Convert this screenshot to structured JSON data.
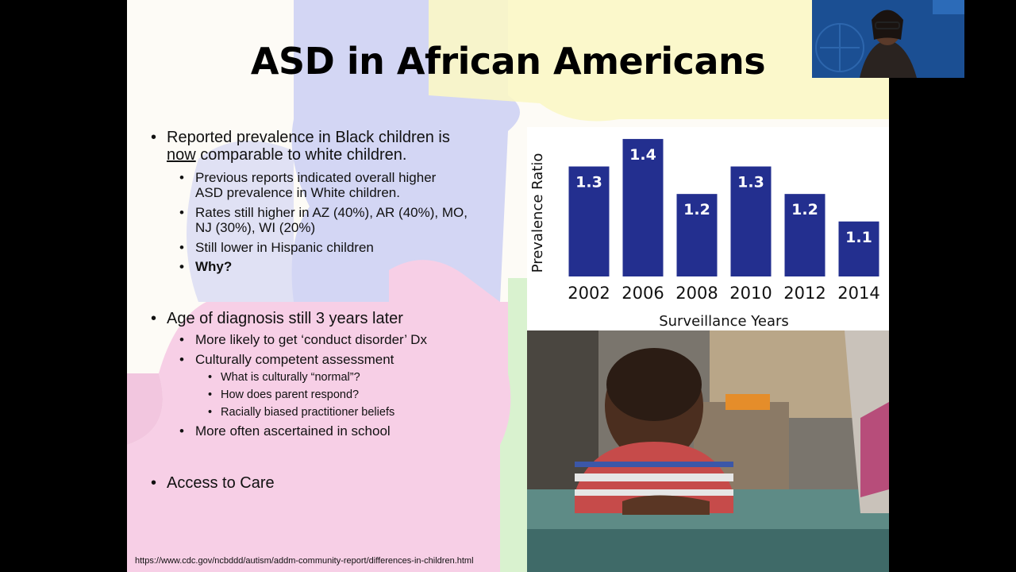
{
  "slide": {
    "title": "ASD in African Americans",
    "bullets": {
      "b1_pre": "Reported prevalence in Black children is",
      "b1_now": "now",
      "b1_post": "comparable to white children.",
      "b1_sub1_line1": "Previous reports indicated overall higher",
      "b1_sub1_line2": "ASD prevalence in White children.",
      "b1_sub2_line1": "Rates still higher in AZ (40%), AR (40%), MO,",
      "b1_sub2_line2": "NJ (30%), WI (20%)",
      "b1_sub3": "Still lower in Hispanic children",
      "b1_sub4": "Why?",
      "b2": "Age of diagnosis still 3 years later",
      "b2_sub1": "More likely to get ‘conduct disorder’ Dx",
      "b2_sub2": "Culturally competent assessment",
      "b2_sub2_a": "What is culturally “normal”?",
      "b2_sub2_b": "How does parent respond?",
      "b2_sub2_c": "Racially biased practitioner beliefs",
      "b2_sub3": "More often ascertained in school",
      "b3": "Access to Care"
    },
    "source_url": "https://www.cdc.gov/ncbddd/autism/addm-community-report/differences-in-children.html"
  },
  "chart_data": {
    "type": "bar",
    "categories": [
      "2002",
      "2006",
      "2008",
      "2010",
      "2012",
      "2014"
    ],
    "values": [
      1.3,
      1.4,
      1.2,
      1.3,
      1.2,
      1.1
    ],
    "value_labels": [
      "1.3",
      "1.4",
      "1.2",
      "1.3",
      "1.2",
      "1.1"
    ],
    "title": "",
    "xlabel": "Surveillance Years",
    "ylabel": "Prevalence Ratio",
    "ylim": [
      0.9,
      1.42
    ],
    "grid": false,
    "bar_color": "#232f8f"
  },
  "colors": {
    "puzzle_blue": "#d3d6f4",
    "puzzle_yellow": "#fbf7c6",
    "puzzle_pink": "#f7cfe6",
    "puzzle_green": "#d9f2cf",
    "webcam_bg": "#1b4f93"
  }
}
